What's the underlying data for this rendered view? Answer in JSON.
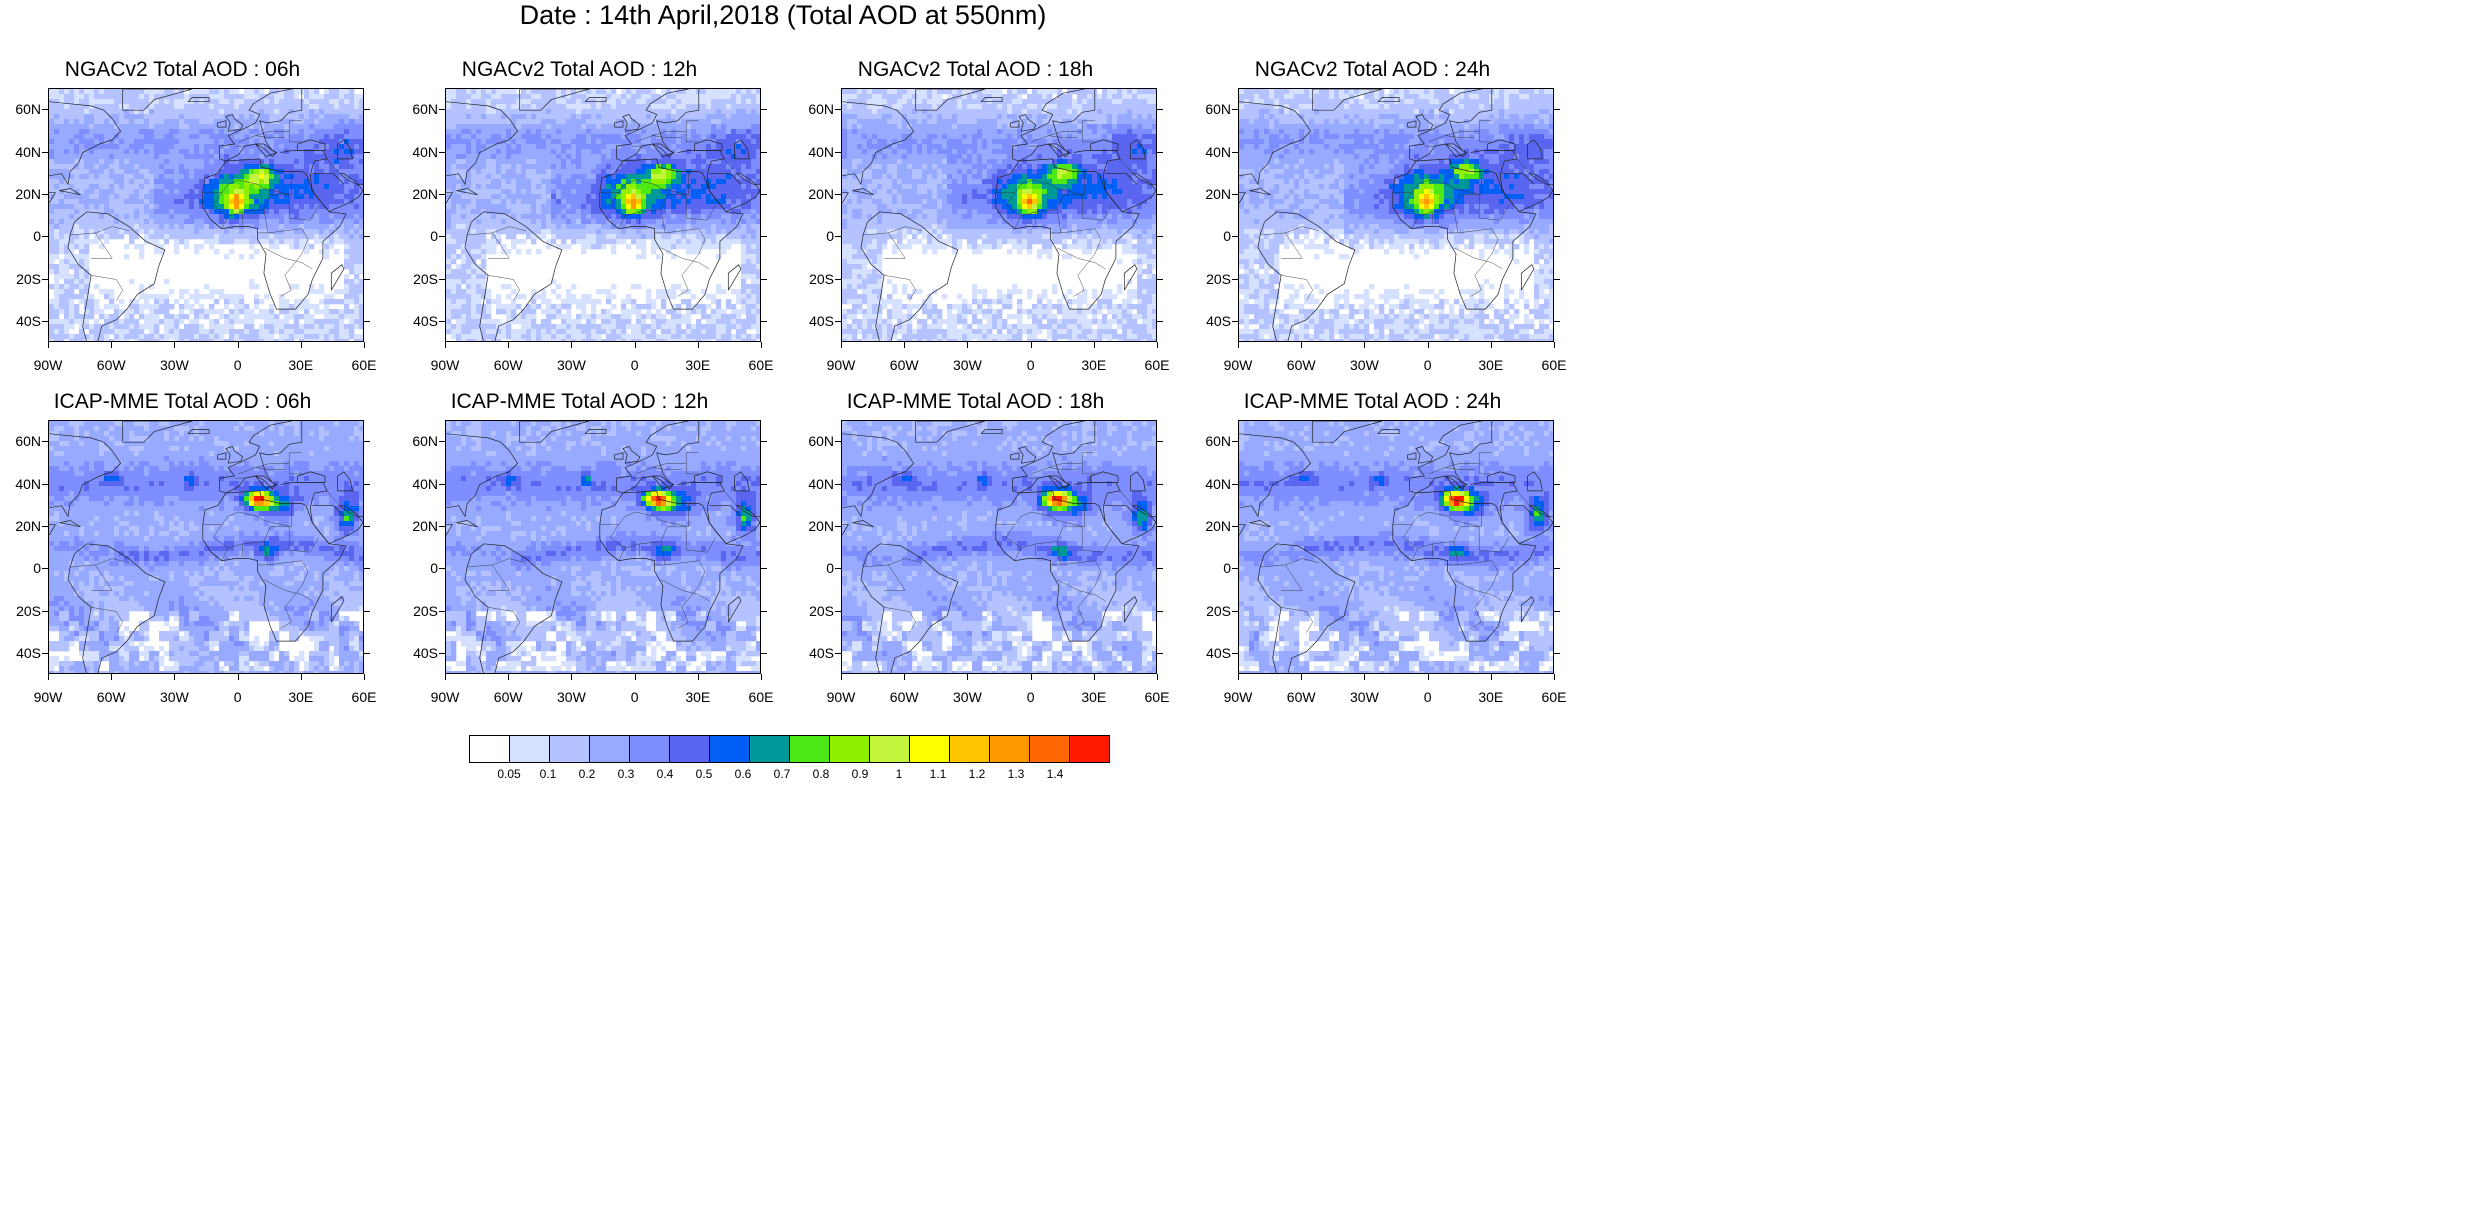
{
  "title": "Date : 14th April,2018 (Total AOD at 550nm)",
  "panels": [
    {
      "title": "NGACv2 Total AOD : 06h",
      "model": "ngac",
      "hour": 6
    },
    {
      "title": "NGACv2 Total AOD : 12h",
      "model": "ngac",
      "hour": 12
    },
    {
      "title": "NGACv2 Total AOD : 18h",
      "model": "ngac",
      "hour": 18
    },
    {
      "title": "NGACv2 Total AOD : 24h",
      "model": "ngac",
      "hour": 24
    },
    {
      "title": "ICAP-MME Total AOD : 06h",
      "model": "icap",
      "hour": 6
    },
    {
      "title": "ICAP-MME Total AOD : 12h",
      "model": "icap",
      "hour": 12
    },
    {
      "title": "ICAP-MME Total AOD : 18h",
      "model": "icap",
      "hour": 18
    },
    {
      "title": "ICAP-MME Total AOD : 24h",
      "model": "icap",
      "hour": 24
    }
  ],
  "axes": {
    "lon_ticks": [
      "90W",
      "60W",
      "30W",
      "0",
      "30E",
      "60E"
    ],
    "lon_values": [
      -90,
      -60,
      -30,
      0,
      30,
      60
    ],
    "lat_ticks": [
      "60N",
      "40N",
      "20N",
      "0",
      "20S",
      "40S"
    ],
    "lat_values": [
      60,
      40,
      20,
      0,
      -20,
      -40
    ],
    "lon_range": [
      -90,
      60
    ],
    "lat_range": [
      -50,
      70
    ]
  },
  "colorbar": {
    "labels": [
      "0.05",
      "0.1",
      "0.2",
      "0.3",
      "0.4",
      "0.5",
      "0.6",
      "0.7",
      "0.8",
      "0.9",
      "1",
      "1.1",
      "1.2",
      "1.3",
      "1.4"
    ],
    "colors": [
      "#ffffff",
      "#d6e0ff",
      "#b4c3ff",
      "#97aaff",
      "#7f8eff",
      "#5b66f0",
      "#005ff5",
      "#009999",
      "#4ee817",
      "#8ff000",
      "#c4f53d",
      "#ffff00",
      "#ffc400",
      "#ff9900",
      "#ff6600",
      "#ff1a00"
    ]
  }
}
